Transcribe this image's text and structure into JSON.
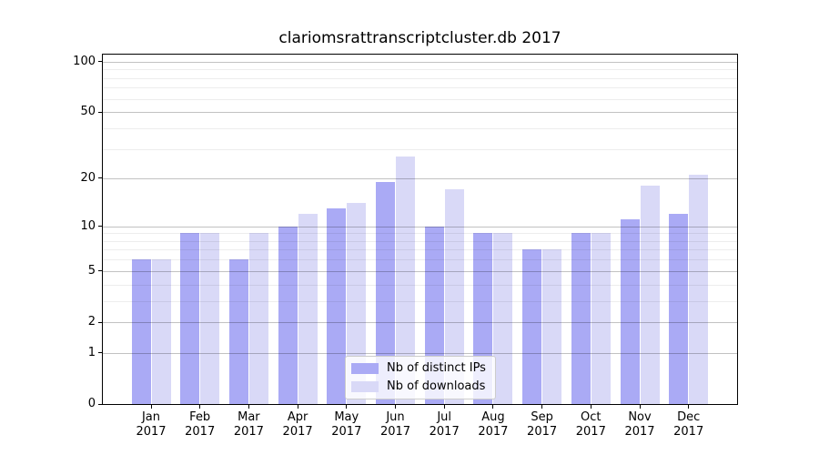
{
  "chart_data": {
    "type": "bar",
    "title": "clariomsrattranscriptcluster.db 2017",
    "categories": [
      "Jan 2017",
      "Feb 2017",
      "Mar 2017",
      "Apr 2017",
      "May 2017",
      "Jun 2017",
      "Jul 2017",
      "Aug 2017",
      "Sep 2017",
      "Oct 2017",
      "Nov 2017",
      "Dec 2017"
    ],
    "series": [
      {
        "name": "Nb of distinct IPs",
        "color": "#aaaaf5",
        "values": [
          6,
          9,
          6,
          10,
          13,
          19,
          10,
          9,
          7,
          9,
          11,
          12
        ]
      },
      {
        "name": "Nb of downloads",
        "color": "#d9d9f7",
        "values": [
          6,
          9,
          9,
          12,
          14,
          27,
          17,
          9,
          7,
          9,
          18,
          21
        ]
      }
    ],
    "xlabel": "",
    "ylabel": "",
    "yscale": "log10(value+1)",
    "ylim": [
      0,
      110
    ],
    "yticks_major": [
      0,
      1,
      2,
      5,
      10,
      20,
      50,
      100
    ],
    "yticks_minor": [
      3,
      4,
      6,
      7,
      8,
      9,
      30,
      40,
      60,
      70,
      80,
      90
    ],
    "grid": "major and minor horizontal gridlines, drawn above bars",
    "legend_position": "inside, lower center"
  },
  "colors": {
    "bar_distinct_ips": "#aaaaf5",
    "bar_downloads": "#d9d9f7",
    "grid_major": "#c2c2c2",
    "grid_minor": "#ededed",
    "axis": "#000000",
    "background": "#ffffff"
  }
}
